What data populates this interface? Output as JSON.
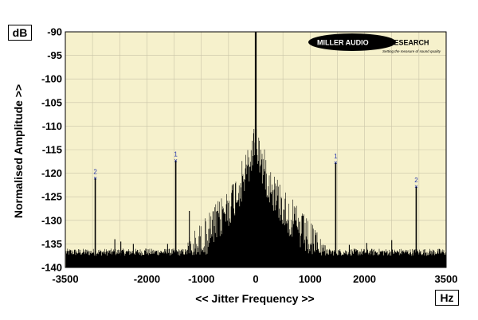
{
  "chart_data": {
    "type": "line",
    "y_unit": "dB",
    "x_unit": "Hz",
    "xlabel": "<< Jitter Frequency >>",
    "ylabel": "Normalised Amplitude >>",
    "xlim": [
      -3500,
      3500
    ],
    "ylim": [
      -140,
      -90
    ],
    "x_ticks": [
      -3500,
      -2000,
      -1000,
      0,
      1000,
      2000,
      3500
    ],
    "y_ticks": [
      -90,
      -95,
      -100,
      -105,
      -110,
      -115,
      -120,
      -125,
      -130,
      -135,
      -140
    ],
    "grid": true,
    "background_color": "#f6f1cc",
    "line_color": "#000000",
    "marker_color": "#2233aa",
    "main_peak": {
      "x": 0,
      "y": -90
    },
    "marked_peaks": [
      {
        "label": "2",
        "x": -2950,
        "y": -121
      },
      {
        "label": "1",
        "x": -1470,
        "y": -117.3
      },
      {
        "label": "1",
        "x": 1470,
        "y": -117.7
      },
      {
        "label": "2",
        "x": 2950,
        "y": -122.8
      }
    ],
    "minor_spurs": [
      {
        "x": -1220,
        "y": -128
      },
      {
        "x": -2590,
        "y": -134
      },
      {
        "x": -2480,
        "y": -134.5
      },
      {
        "x": -2250,
        "y": -135
      },
      {
        "x": -2020,
        "y": -136
      },
      {
        "x": -1820,
        "y": -136.5
      },
      {
        "x": -1620,
        "y": -135
      },
      {
        "x": 1720,
        "y": -135.2
      },
      {
        "x": 2040,
        "y": -134.8
      },
      {
        "x": 2110,
        "y": -136.5
      },
      {
        "x": 2500,
        "y": -134.2
      },
      {
        "x": 2700,
        "y": -136.5
      }
    ]
  },
  "logo": {
    "name_left": "MILLER AUDIO",
    "name_right": "RESEARCH",
    "tagline": "Setting the measure of sound quality"
  }
}
